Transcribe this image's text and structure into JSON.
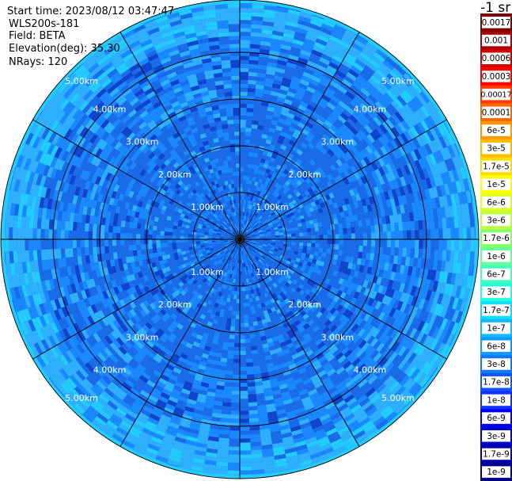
{
  "info": {
    "start_time": "Start time: 2023/08/12 03:47:47",
    "instrument": "WLS200s-181",
    "field": "Field: BETA",
    "elevation": "Elevation(deg): 35.30",
    "nrays": "NRays: 120"
  },
  "range_rings": {
    "labels": [
      "1.00km",
      "2.00km",
      "3.00km",
      "4.00km",
      "5.00km"
    ]
  },
  "colorbar": {
    "unit": "-1 sr",
    "labels": [
      "0.0017",
      "0.001",
      "0.0006",
      "0.0003",
      "0.00017",
      "0.0001",
      "6e-5",
      "3e-5",
      "1.7e-5",
      "1e-5",
      "6e-6",
      "3e-6",
      "1.7e-6",
      "1e-6",
      "6e-7",
      "3e-7",
      "1.7e-7",
      "1e-7",
      "6e-8",
      "3e-8",
      "1.7e-8",
      "1e-8",
      "6e-9",
      "3e-9",
      "1.7e-9",
      "1e-9"
    ],
    "colors": [
      "#7a0000",
      "#aa0000",
      "#d40000",
      "#ff0000",
      "#ff3a00",
      "#ff6600",
      "#ff9900",
      "#ffbb00",
      "#ffdd00",
      "#ffff00",
      "#ddff22",
      "#bbff44",
      "#88ff66",
      "#66ff99",
      "#44ffbb",
      "#22ffdd",
      "#11ddff",
      "#11bbff",
      "#1199ff",
      "#1177ff",
      "#1155ff",
      "#1133ff",
      "#0000ee",
      "#0000cc",
      "#0000aa",
      "#000088"
    ]
  },
  "plot_colors": {
    "base": "#1a6be8",
    "mid": "#1a88ff",
    "light": "#2fb0ff",
    "cyan": "#22ccff",
    "dark": "#1044cc"
  }
}
